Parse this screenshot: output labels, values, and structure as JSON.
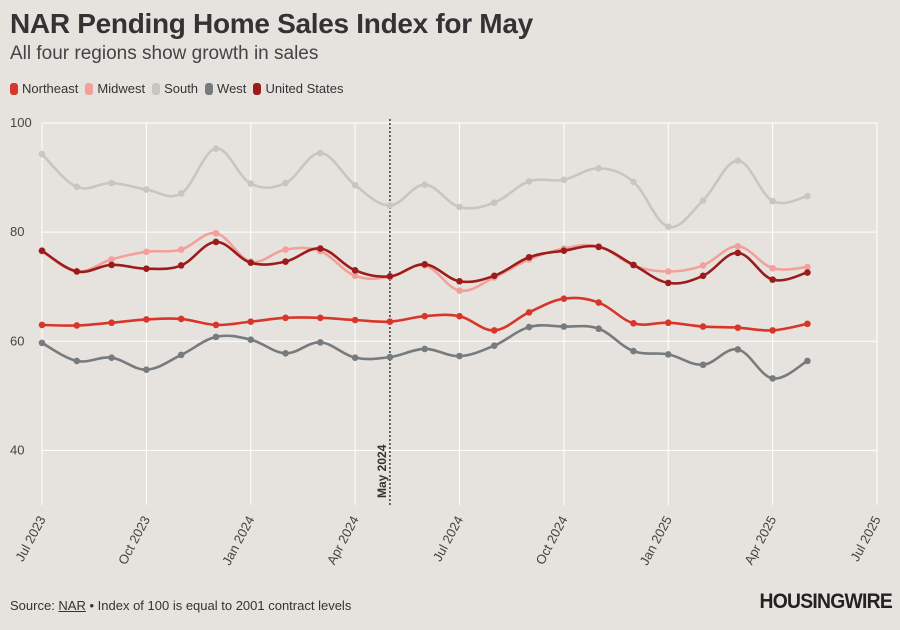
{
  "title": "NAR Pending Home Sales Index for May",
  "subtitle": "All four regions show growth in sales",
  "footer": {
    "source_prefix": "Source: ",
    "source_link": "NAR",
    "note": " • Index of 100 is equal to 2001 contract levels"
  },
  "logo": "HOUSINGWIRE",
  "colors": {
    "background": "#e6e3df",
    "grid": "#ffffff",
    "Northeast": "#d9362b",
    "Midwest": "#f2a19a",
    "South": "#c8c5c2",
    "West": "#767b7e",
    "United States": "#9c1c1c"
  },
  "chart_data": {
    "type": "line",
    "title": "NAR Pending Home Sales Index for May",
    "subtitle": "All four regions show growth in sales",
    "xlabel": "",
    "ylabel": "",
    "ylim": [
      30,
      100
    ],
    "yticks": [
      40,
      60,
      80,
      100
    ],
    "grid": true,
    "legend_position": "top-left",
    "x_months": [
      "2023-07",
      "2023-08",
      "2023-09",
      "2023-10",
      "2023-11",
      "2023-12",
      "2024-01",
      "2024-02",
      "2024-03",
      "2024-04",
      "2024-05",
      "2024-06",
      "2024-07",
      "2024-08",
      "2024-09",
      "2024-10",
      "2024-11",
      "2024-12",
      "2025-01",
      "2025-02",
      "2025-03",
      "2025-04",
      "2025-05"
    ],
    "x_ticks": [
      {
        "label": "Jul 2023",
        "index": 0
      },
      {
        "label": "Oct 2023",
        "index": 3
      },
      {
        "label": "Jan 2024",
        "index": 6
      },
      {
        "label": "Apr 2024",
        "index": 9
      },
      {
        "label": "Jul 2024",
        "index": 12
      },
      {
        "label": "Oct 2024",
        "index": 15
      },
      {
        "label": "Jan 2025",
        "index": 18
      },
      {
        "label": "Apr 2025",
        "index": 21
      },
      {
        "label": "Jul 2025",
        "index": 24
      }
    ],
    "x_range": [
      0,
      24
    ],
    "annotation": {
      "label": "May 2024",
      "index": 10
    },
    "series": [
      {
        "name": "South",
        "values": [
          94.3,
          88.3,
          89.0,
          87.8,
          87.1,
          95.3,
          88.9,
          89.0,
          94.5,
          88.6,
          84.9,
          88.7,
          84.6,
          85.4,
          89.3,
          89.6,
          91.7,
          89.2,
          81.0,
          85.8,
          93.1,
          85.7,
          86.6
        ]
      },
      {
        "name": "Midwest",
        "values": [
          76.5,
          72.8,
          75.0,
          76.4,
          76.8,
          79.8,
          74.6,
          76.8,
          76.5,
          72.0,
          71.8,
          73.9,
          69.3,
          71.7,
          75.0,
          77.0,
          77.4,
          73.9,
          72.8,
          73.9,
          77.4,
          73.4,
          73.6
        ]
      },
      {
        "name": "United States",
        "values": [
          76.6,
          72.8,
          74.0,
          73.3,
          73.9,
          78.2,
          74.4,
          74.6,
          77.0,
          73.0,
          71.9,
          74.1,
          71.0,
          72.0,
          75.4,
          76.6,
          77.3,
          74.0,
          70.7,
          72.0,
          76.2,
          71.3,
          72.6
        ]
      },
      {
        "name": "Northeast",
        "values": [
          63.0,
          62.9,
          63.4,
          64.0,
          64.1,
          63.0,
          63.6,
          64.3,
          64.3,
          63.9,
          63.6,
          64.6,
          64.6,
          62.0,
          65.3,
          67.8,
          67.1,
          63.3,
          63.4,
          62.7,
          62.5,
          62.0,
          63.2
        ]
      },
      {
        "name": "West",
        "values": [
          59.7,
          56.4,
          57.0,
          54.8,
          57.5,
          60.8,
          60.3,
          57.8,
          59.8,
          57.0,
          57.1,
          58.6,
          57.3,
          59.2,
          62.6,
          62.7,
          62.3,
          58.2,
          57.6,
          55.7,
          58.5,
          53.2,
          56.4
        ]
      }
    ],
    "legend": [
      "Northeast",
      "Midwest",
      "South",
      "West",
      "United States"
    ]
  }
}
